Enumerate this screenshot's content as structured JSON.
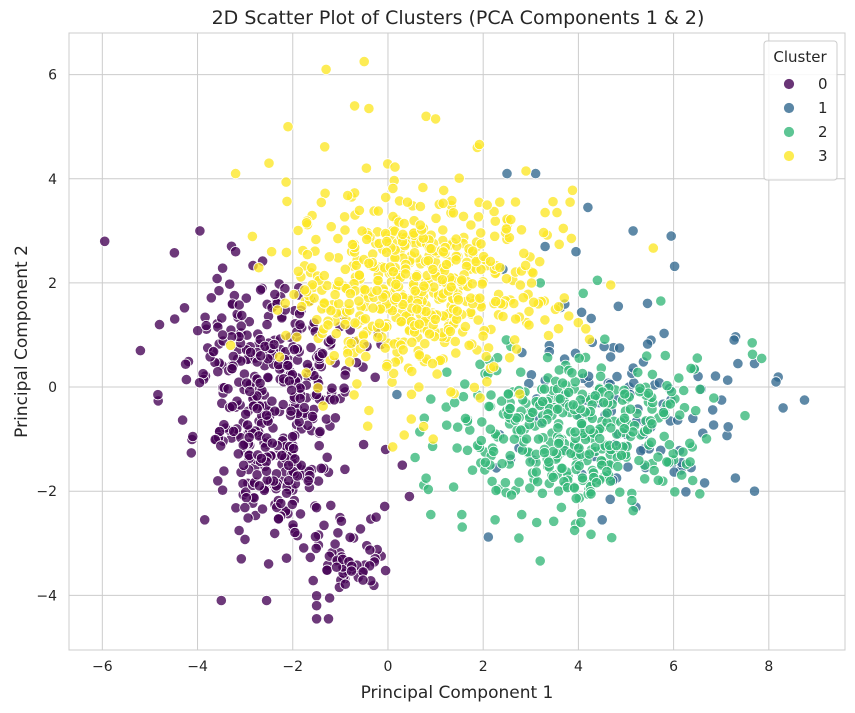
{
  "chart_data": {
    "type": "scatter",
    "title": "2D Scatter Plot of Clusters (PCA Components 1 & 2)",
    "xlabel": "Principal Component 1",
    "ylabel": "Principal Component 2",
    "xlim": [
      -6.7,
      9.6
    ],
    "ylim": [
      -5.05,
      6.8
    ],
    "xticks": [
      "−6",
      "−4",
      "−2",
      "0",
      "2",
      "4",
      "6",
      "8"
    ],
    "xtick_values": [
      -6,
      -4,
      -2,
      0,
      2,
      4,
      6,
      8
    ],
    "yticks": [
      "−4",
      "−2",
      "0",
      "2",
      "4",
      "6"
    ],
    "ytick_values": [
      -4,
      -2,
      0,
      2,
      4,
      6
    ],
    "grid": true,
    "legend": {
      "title": "Cluster",
      "placement": "top-right"
    },
    "series": [
      {
        "name": "0",
        "color": "#440154",
        "count": 520,
        "points": [
          [
            -5.95,
            2.8
          ],
          [
            -5.2,
            0.7
          ],
          [
            -4.8,
            1.2
          ],
          [
            -4.1,
            -0.95
          ],
          [
            -3.85,
            -2.55
          ],
          [
            -3.55,
            1.85
          ],
          [
            -3.5,
            -4.1
          ],
          [
            -2.55,
            -4.1
          ],
          [
            -1.5,
            -4.45
          ],
          [
            -1.5,
            -4.2
          ],
          [
            -1.25,
            -4.45
          ],
          [
            -0.05,
            -1.2
          ],
          [
            0.3,
            -1.5
          ],
          [
            0.45,
            -2.1
          ],
          [
            -0.25,
            -2.5
          ],
          [
            -3.95,
            3.0
          ],
          [
            -3.2,
            2.6
          ]
        ]
      },
      {
        "name": "1",
        "color": "#31688e",
        "count": 120,
        "points": [
          [
            2.5,
            4.1
          ],
          [
            3.1,
            4.1
          ],
          [
            4.2,
            3.45
          ],
          [
            5.15,
            3.0
          ],
          [
            5.95,
            2.9
          ],
          [
            3.3,
            2.7
          ],
          [
            3.95,
            2.6
          ],
          [
            8.75,
            -0.25
          ],
          [
            8.3,
            -0.4
          ],
          [
            8.15,
            0.1
          ],
          [
            7.7,
            -2.0
          ],
          [
            7.7,
            0.45
          ],
          [
            7.35,
            0.45
          ],
          [
            4.5,
            -2.55
          ]
        ]
      },
      {
        "name": "2",
        "color": "#35b779",
        "count": 400,
        "points": [
          [
            4.4,
            2.05
          ],
          [
            4.1,
            1.8
          ],
          [
            3.2,
            2.0
          ],
          [
            2.1,
            0.25
          ],
          [
            1.4,
            -0.3
          ],
          [
            0.8,
            -1.75
          ],
          [
            0.9,
            -2.45
          ],
          [
            1.55,
            -2.45
          ],
          [
            2.25,
            -2.55
          ],
          [
            2.75,
            -2.9
          ],
          [
            7.65,
            0.85
          ],
          [
            7.85,
            0.55
          ],
          [
            7.5,
            -0.55
          ],
          [
            6.55,
            -2.05
          ],
          [
            4.05,
            -2.6
          ]
        ]
      },
      {
        "name": "3",
        "color": "#fde725",
        "count": 600,
        "points": [
          [
            -1.3,
            6.1
          ],
          [
            -0.5,
            6.25
          ],
          [
            -0.7,
            5.4
          ],
          [
            -0.4,
            5.35
          ],
          [
            0.8,
            5.2
          ],
          [
            1.0,
            5.15
          ],
          [
            -2.1,
            5.0
          ],
          [
            -3.2,
            4.1
          ],
          [
            -2.5,
            4.3
          ],
          [
            2.9,
            4.15
          ],
          [
            3.3,
            3.35
          ],
          [
            3.55,
            3.35
          ],
          [
            0.5,
            0.3
          ],
          [
            0.65,
            0.0
          ],
          [
            0.1,
            -1.15
          ],
          [
            0.95,
            -1.0
          ],
          [
            -0.4,
            -0.45
          ]
        ]
      }
    ]
  }
}
